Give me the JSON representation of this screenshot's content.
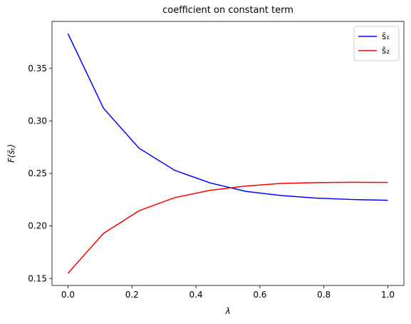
{
  "chart_data": {
    "type": "line",
    "title": "coefficient on constant term",
    "x_label": "λ",
    "y_label": "F(s̄ₜ)",
    "x": [
      0,
      0.1111,
      0.2222,
      0.3333,
      0.4444,
      0.5556,
      0.6667,
      0.7778,
      0.8889,
      1.0
    ],
    "series": [
      {
        "name": "s̄₁",
        "color": "#0000ff",
        "values": [
          0.383,
          0.312,
          0.274,
          0.253,
          0.241,
          0.233,
          0.229,
          0.2265,
          0.2252,
          0.2245
        ]
      },
      {
        "name": "s̄₂",
        "color": "#ff0000",
        "values": [
          0.155,
          0.193,
          0.2145,
          0.227,
          0.234,
          0.238,
          0.2405,
          0.2413,
          0.2416,
          0.2415
        ]
      }
    ],
    "xlim": [
      -0.05,
      1.05
    ],
    "xticks": [
      {
        "value": 0,
        "label": "0.0"
      },
      0.2,
      0.4,
      0.6,
      0.8,
      {
        "value": 1,
        "label": "1.0"
      }
    ],
    "ylim": [
      0.1434,
      0.3947
    ],
    "yticks": [
      0.15,
      {
        "value": 0.2,
        "label": "0.20"
      },
      0.25,
      {
        "value": 0.3,
        "label": "0.30"
      },
      0.35
    ],
    "legend": "upper right"
  }
}
